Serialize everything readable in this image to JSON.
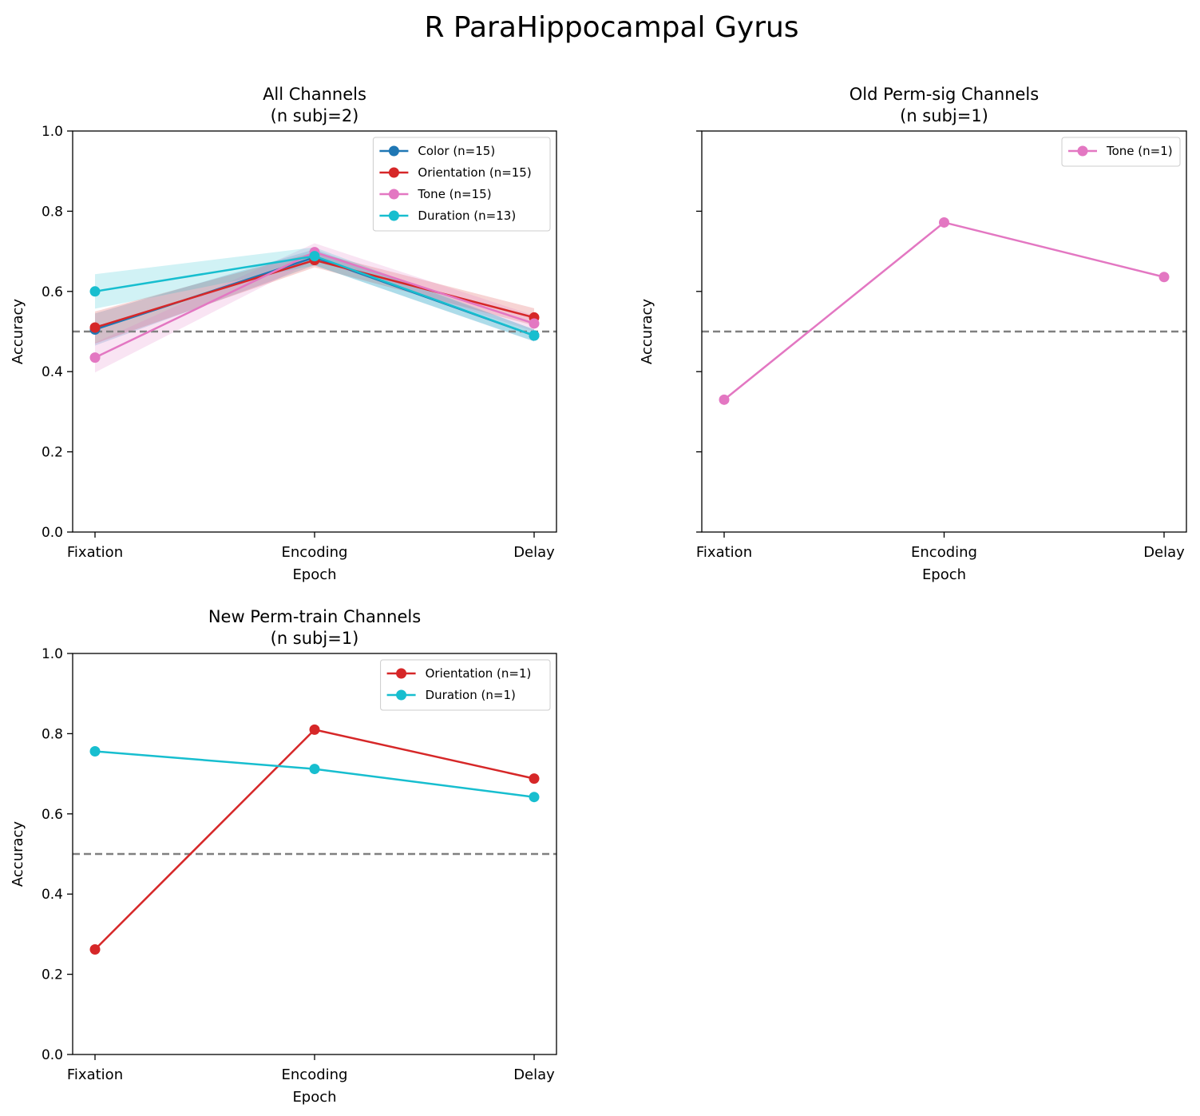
{
  "figure": {
    "suptitle": "R ParaHippocampal Gyrus"
  },
  "colors": {
    "Color": "#1f77b4",
    "Orientation": "#d62728",
    "Tone": "#e377c2",
    "Duration": "#17becf",
    "chance_line": "#808080"
  },
  "chart_data": [
    {
      "type": "line",
      "title_line1": "All Channels",
      "title_line2": "(n subj=2)",
      "xlabel": "Epoch",
      "ylabel": "Accuracy",
      "categories": [
        "Fixation",
        "Encoding",
        "Delay"
      ],
      "ylim": [
        0,
        1
      ],
      "yticks": [
        "0.0",
        "0.2",
        "0.4",
        "0.6",
        "0.8",
        "1.0"
      ],
      "show_ytick_labels": true,
      "chance_level": 0.5,
      "legend_position": "top-right",
      "series": [
        {
          "name": "Color (n=15)",
          "color_key": "Color",
          "values": [
            0.505,
            0.685,
            0.49
          ],
          "lower": [
            0.465,
            0.665,
            0.475
          ],
          "upper": [
            0.545,
            0.705,
            0.505
          ]
        },
        {
          "name": "Orientation (n=15)",
          "color_key": "Orientation",
          "values": [
            0.51,
            0.678,
            0.535
          ],
          "lower": [
            0.47,
            0.66,
            0.515
          ],
          "upper": [
            0.55,
            0.698,
            0.558
          ]
        },
        {
          "name": "Tone (n=15)",
          "color_key": "Tone",
          "values": [
            0.435,
            0.698,
            0.52
          ],
          "lower": [
            0.398,
            0.678,
            0.5
          ],
          "upper": [
            0.472,
            0.72,
            0.54
          ]
        },
        {
          "name": "Duration (n=13)",
          "color_key": "Duration",
          "values": [
            0.6,
            0.688,
            0.49
          ],
          "lower": [
            0.557,
            0.665,
            0.476
          ],
          "upper": [
            0.643,
            0.71,
            0.505
          ]
        }
      ]
    },
    {
      "type": "line",
      "title_line1": "Old Perm-sig Channels",
      "title_line2": "(n subj=1)",
      "xlabel": "Epoch",
      "ylabel": "Accuracy",
      "categories": [
        "Fixation",
        "Encoding",
        "Delay"
      ],
      "ylim": [
        0,
        1
      ],
      "yticks": [
        "0.0",
        "0.2",
        "0.4",
        "0.6",
        "0.8",
        "1.0"
      ],
      "show_ytick_labels": false,
      "chance_level": 0.5,
      "legend_position": "top-right",
      "series": [
        {
          "name": "Tone (n=1)",
          "color_key": "Tone",
          "values": [
            0.33,
            0.772,
            0.636
          ]
        }
      ]
    },
    {
      "type": "line",
      "title_line1": "New Perm-train Channels",
      "title_line2": "(n subj=1)",
      "xlabel": "Epoch",
      "ylabel": "Accuracy",
      "categories": [
        "Fixation",
        "Encoding",
        "Delay"
      ],
      "ylim": [
        0,
        1
      ],
      "yticks": [
        "0.0",
        "0.2",
        "0.4",
        "0.6",
        "0.8",
        "1.0"
      ],
      "show_ytick_labels": true,
      "chance_level": 0.5,
      "legend_position": "top-right",
      "series": [
        {
          "name": "Orientation (n=1)",
          "color_key": "Orientation",
          "values": [
            0.262,
            0.81,
            0.688
          ]
        },
        {
          "name": "Duration (n=1)",
          "color_key": "Duration",
          "values": [
            0.756,
            0.712,
            0.642
          ]
        }
      ]
    }
  ]
}
